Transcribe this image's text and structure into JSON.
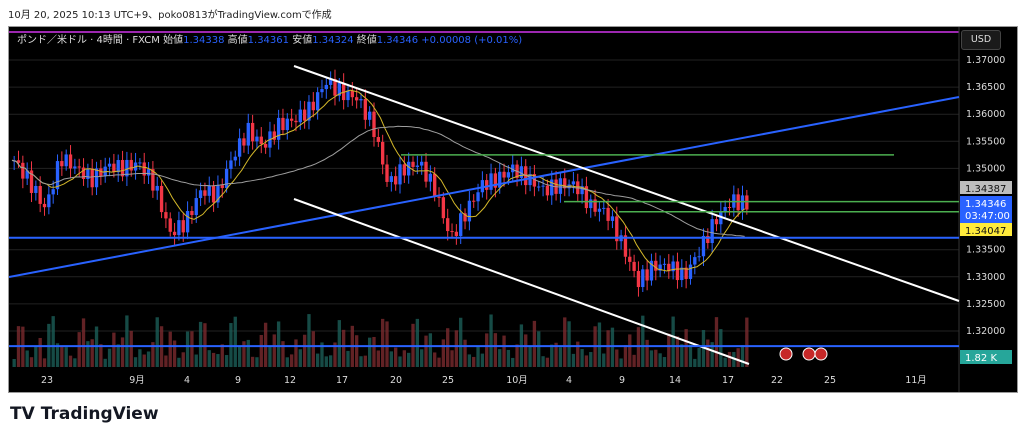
{
  "caption": "10月 20, 2025 10:13 UTC+9、poko0813がTradingView.comで作成",
  "legend": {
    "symbol": "ポンド／米ドル · 4時間 · FXCM",
    "open_label": "始値",
    "open": "1.34338",
    "high_label": "高値",
    "high": "1.34361",
    "low_label": "安値",
    "low": "1.34324",
    "close_label": "終値",
    "close": "1.34346",
    "change": "+0.00008 (+0.01%)"
  },
  "currency": "USD",
  "brand": "TradingView",
  "colors": {
    "up": "#2962ff",
    "down": "#f23645",
    "ma_fast": "#d4b82a",
    "ma_slow": "#9e9e9e",
    "trend": "#2962ff",
    "channel": "#ffffff",
    "level": "#4caf50"
  },
  "chart_data": {
    "type": "candlestick",
    "y_ticks": [
      "1.37000",
      "1.36500",
      "1.36000",
      "1.35500",
      "1.35000",
      "1.33500",
      "1.33000",
      "1.32500",
      "1.32000"
    ],
    "x_ticks": [
      "23",
      "9月",
      "4",
      "9",
      "12",
      "17",
      "20",
      "25",
      "10月",
      "4",
      "9",
      "14",
      "17",
      "22",
      "25",
      "11月"
    ],
    "closes": [
      1.3515,
      1.3475,
      1.3425,
      1.352,
      1.35,
      1.348,
      1.3505,
      1.35,
      1.351,
      1.347,
      1.338,
      1.34,
      1.346,
      1.345,
      1.352,
      1.357,
      1.354,
      1.358,
      1.359,
      1.361,
      1.366,
      1.364,
      1.363,
      1.358,
      1.347,
      1.35,
      1.351,
      1.346,
      1.337,
      1.342,
      1.347,
      1.348,
      1.35,
      1.348,
      1.346,
      1.347,
      1.347,
      1.343,
      1.342,
      1.336,
      1.329,
      1.332,
      1.332,
      1.33,
      1.335,
      1.3405,
      1.344,
      1.34346
    ],
    "price_labels": {
      "last": "1.34346",
      "countdown": "03:47:00",
      "level": "1.34387",
      "ma": "1.34047",
      "volume": "1.82 K"
    },
    "levels": [
      1.3525,
      1.34387,
      1.342,
      1.3372,
      1.3172
    ]
  }
}
